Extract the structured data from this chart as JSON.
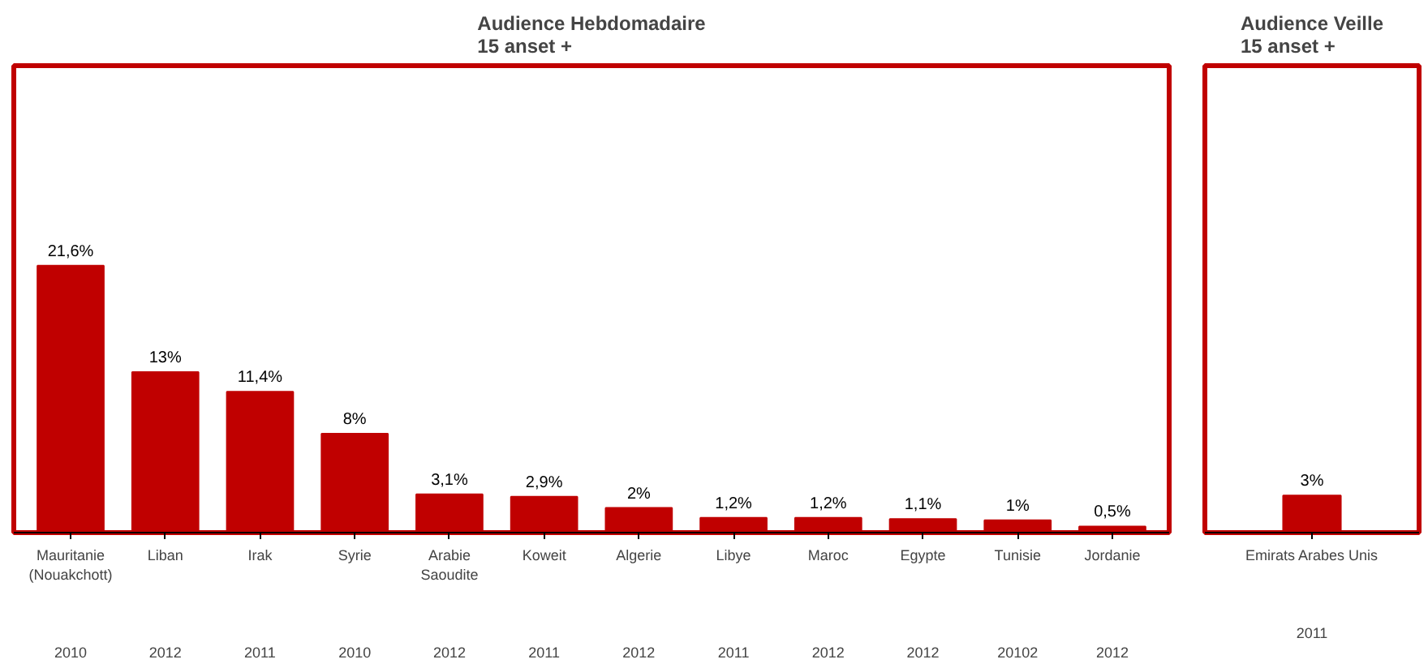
{
  "chart_data": [
    {
      "type": "bar",
      "title": "Audience Hebdomadaire\n15 anset +",
      "categories": [
        "Mauritanie\n(Nouakchott)",
        "Liban",
        "Irak",
        "Syrie",
        "Arabie\nSaoudite",
        "Koweit",
        "Algerie",
        "Libye",
        "Maroc",
        "Egypte",
        "Tunisie",
        "Jordanie"
      ],
      "values": [
        21.6,
        13,
        11.4,
        8,
        3.1,
        2.9,
        2,
        1.2,
        1.2,
        1.1,
        1,
        0.5
      ],
      "value_labels": [
        "21,6%",
        "13%",
        "11,4%",
        "8%",
        "3,1%",
        "2,9%",
        "2%",
        "1,2%",
        "1,2%",
        "1,1%",
        "1%",
        "0,5%"
      ],
      "color": "#c00000",
      "grid": false,
      "annotations": [
        "2010",
        "2012",
        "2011",
        "2010",
        "2012",
        "2011",
        "2012",
        "2011",
        "2012",
        "2012",
        "20102",
        "2012"
      ]
    },
    {
      "type": "bar",
      "title": "Audience Veille\n15 anset +",
      "categories": [
        "Emirats Arabes Unis"
      ],
      "values": [
        3
      ],
      "value_labels": [
        "3%"
      ],
      "color": "#c00000",
      "grid": false,
      "annotations": [
        "2011"
      ]
    }
  ]
}
